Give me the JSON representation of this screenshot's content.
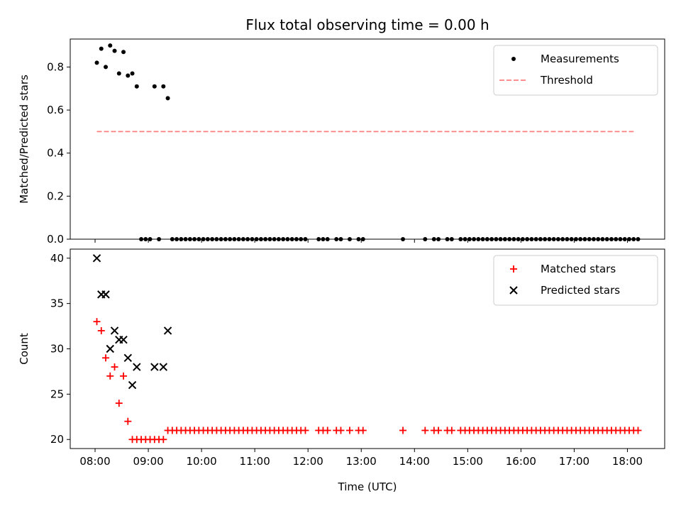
{
  "chart_data": [
    {
      "type": "scatter",
      "title": "Flux total observing time = 0.00 h",
      "ylabel": "Matched/Predicted stars",
      "xlabel": "",
      "ylim": [
        0,
        0.93
      ],
      "yticks": [
        "0.0",
        "0.2",
        "0.4",
        "0.6",
        "0.8"
      ],
      "ytick_values": [
        0,
        0.2,
        0.4,
        0.6,
        0.8
      ],
      "legend_position": "upper-right",
      "series": [
        {
          "name": "Measurements",
          "marker": "dot",
          "color": "#000000",
          "points": [
            [
              "08:02",
              0.82
            ],
            [
              "08:07",
              0.885
            ],
            [
              "08:12",
              0.8
            ],
            [
              "08:17",
              0.9
            ],
            [
              "08:22",
              0.875
            ],
            [
              "08:27",
              0.77
            ],
            [
              "08:32",
              0.87
            ],
            [
              "08:37",
              0.76
            ],
            [
              "08:42",
              0.77
            ],
            [
              "08:47",
              0.71
            ],
            [
              "08:52",
              0.0
            ],
            [
              "08:57",
              0.0
            ],
            [
              "09:02",
              0.0
            ],
            [
              "09:07",
              0.71
            ],
            [
              "09:12",
              0.0
            ],
            [
              "09:17",
              0.71
            ],
            [
              "09:22",
              0.655
            ],
            [
              "09:27",
              0.0
            ],
            [
              "09:32",
              0.0
            ],
            [
              "09:37",
              0.0
            ],
            [
              "09:42",
              0.0
            ],
            [
              "09:47",
              0.0
            ],
            [
              "09:52",
              0.0
            ],
            [
              "09:57",
              0.0
            ],
            [
              "10:02",
              0.0
            ],
            [
              "10:07",
              0.0
            ],
            [
              "10:12",
              0.0
            ],
            [
              "10:17",
              0.0
            ],
            [
              "10:22",
              0.0
            ],
            [
              "10:27",
              0.0
            ],
            [
              "10:32",
              0.0
            ],
            [
              "10:37",
              0.0
            ],
            [
              "10:42",
              0.0
            ],
            [
              "10:47",
              0.0
            ],
            [
              "10:52",
              0.0
            ],
            [
              "10:57",
              0.0
            ],
            [
              "11:02",
              0.0
            ],
            [
              "11:07",
              0.0
            ],
            [
              "11:12",
              0.0
            ],
            [
              "11:17",
              0.0
            ],
            [
              "11:22",
              0.0
            ],
            [
              "11:27",
              0.0
            ],
            [
              "11:32",
              0.0
            ],
            [
              "11:37",
              0.0
            ],
            [
              "11:42",
              0.0
            ],
            [
              "11:47",
              0.0
            ],
            [
              "11:52",
              0.0
            ],
            [
              "11:57",
              0.0
            ],
            [
              "12:12",
              0.0
            ],
            [
              "12:17",
              0.0
            ],
            [
              "12:22",
              0.0
            ],
            [
              "12:32",
              0.0
            ],
            [
              "12:37",
              0.0
            ],
            [
              "12:47",
              0.0
            ],
            [
              "12:57",
              0.0
            ],
            [
              "13:02",
              0.0
            ],
            [
              "13:47",
              0.0
            ],
            [
              "14:12",
              0.0
            ],
            [
              "14:22",
              0.0
            ],
            [
              "14:27",
              0.0
            ],
            [
              "14:37",
              0.0
            ],
            [
              "14:42",
              0.0
            ],
            [
              "14:52",
              0.0
            ],
            [
              "14:57",
              0.0
            ],
            [
              "15:02",
              0.0
            ],
            [
              "15:07",
              0.0
            ],
            [
              "15:12",
              0.0
            ],
            [
              "15:17",
              0.0
            ],
            [
              "15:22",
              0.0
            ],
            [
              "15:27",
              0.0
            ],
            [
              "15:32",
              0.0
            ],
            [
              "15:37",
              0.0
            ],
            [
              "15:42",
              0.0
            ],
            [
              "15:47",
              0.0
            ],
            [
              "15:52",
              0.0
            ],
            [
              "15:57",
              0.0
            ],
            [
              "16:02",
              0.0
            ],
            [
              "16:07",
              0.0
            ],
            [
              "16:12",
              0.0
            ],
            [
              "16:17",
              0.0
            ],
            [
              "16:22",
              0.0
            ],
            [
              "16:27",
              0.0
            ],
            [
              "16:32",
              0.0
            ],
            [
              "16:37",
              0.0
            ],
            [
              "16:42",
              0.0
            ],
            [
              "16:47",
              0.0
            ],
            [
              "16:52",
              0.0
            ],
            [
              "16:57",
              0.0
            ],
            [
              "17:02",
              0.0
            ],
            [
              "17:07",
              0.0
            ],
            [
              "17:12",
              0.0
            ],
            [
              "17:17",
              0.0
            ],
            [
              "17:22",
              0.0
            ],
            [
              "17:27",
              0.0
            ],
            [
              "17:32",
              0.0
            ],
            [
              "17:37",
              0.0
            ],
            [
              "17:42",
              0.0
            ],
            [
              "17:47",
              0.0
            ],
            [
              "17:52",
              0.0
            ],
            [
              "17:57",
              0.0
            ],
            [
              "18:02",
              0.0
            ],
            [
              "18:07",
              0.0
            ],
            [
              "18:12",
              0.0
            ]
          ]
        },
        {
          "name": "Threshold",
          "marker": "dashed-line",
          "color": "#ff7f7f",
          "points": [
            [
              "08:02",
              0.5
            ],
            [
              "18:07",
              0.5
            ]
          ]
        }
      ]
    },
    {
      "type": "scatter",
      "title": "",
      "ylabel": "Count",
      "xlabel": "Time (UTC)",
      "ylim": [
        19,
        41
      ],
      "yticks": [
        "20",
        "25",
        "30",
        "35",
        "40"
      ],
      "ytick_values": [
        20,
        25,
        30,
        35,
        40
      ],
      "xlim": [
        "07:32",
        "18:42"
      ],
      "xticks": [
        "08:00",
        "09:00",
        "10:00",
        "11:00",
        "12:00",
        "13:00",
        "14:00",
        "15:00",
        "16:00",
        "17:00",
        "18:00"
      ],
      "legend_position": "upper-right",
      "series": [
        {
          "name": "Matched stars",
          "marker": "plus",
          "color": "#ff0000",
          "points": [
            [
              "08:02",
              33
            ],
            [
              "08:07",
              32
            ],
            [
              "08:12",
              29
            ],
            [
              "08:17",
              27
            ],
            [
              "08:22",
              28
            ],
            [
              "08:27",
              24
            ],
            [
              "08:32",
              27
            ],
            [
              "08:37",
              22
            ],
            [
              "08:42",
              20
            ],
            [
              "08:47",
              20
            ],
            [
              "08:52",
              20
            ],
            [
              "08:57",
              20
            ],
            [
              "09:02",
              20
            ],
            [
              "09:07",
              20
            ],
            [
              "09:12",
              20
            ],
            [
              "09:17",
              20
            ],
            [
              "09:22",
              21
            ],
            [
              "09:27",
              21
            ],
            [
              "09:32",
              21
            ],
            [
              "09:37",
              21
            ],
            [
              "09:42",
              21
            ],
            [
              "09:47",
              21
            ],
            [
              "09:52",
              21
            ],
            [
              "09:57",
              21
            ],
            [
              "10:02",
              21
            ],
            [
              "10:07",
              21
            ],
            [
              "10:12",
              21
            ],
            [
              "10:17",
              21
            ],
            [
              "10:22",
              21
            ],
            [
              "10:27",
              21
            ],
            [
              "10:32",
              21
            ],
            [
              "10:37",
              21
            ],
            [
              "10:42",
              21
            ],
            [
              "10:47",
              21
            ],
            [
              "10:52",
              21
            ],
            [
              "10:57",
              21
            ],
            [
              "11:02",
              21
            ],
            [
              "11:07",
              21
            ],
            [
              "11:12",
              21
            ],
            [
              "11:17",
              21
            ],
            [
              "11:22",
              21
            ],
            [
              "11:27",
              21
            ],
            [
              "11:32",
              21
            ],
            [
              "11:37",
              21
            ],
            [
              "11:42",
              21
            ],
            [
              "11:47",
              21
            ],
            [
              "11:52",
              21
            ],
            [
              "11:57",
              21
            ],
            [
              "12:12",
              21
            ],
            [
              "12:17",
              21
            ],
            [
              "12:22",
              21
            ],
            [
              "12:32",
              21
            ],
            [
              "12:37",
              21
            ],
            [
              "12:47",
              21
            ],
            [
              "12:57",
              21
            ],
            [
              "13:02",
              21
            ],
            [
              "13:47",
              21
            ],
            [
              "14:12",
              21
            ],
            [
              "14:22",
              21
            ],
            [
              "14:27",
              21
            ],
            [
              "14:37",
              21
            ],
            [
              "14:42",
              21
            ],
            [
              "14:52",
              21
            ],
            [
              "14:57",
              21
            ],
            [
              "15:02",
              21
            ],
            [
              "15:07",
              21
            ],
            [
              "15:12",
              21
            ],
            [
              "15:17",
              21
            ],
            [
              "15:22",
              21
            ],
            [
              "15:27",
              21
            ],
            [
              "15:32",
              21
            ],
            [
              "15:37",
              21
            ],
            [
              "15:42",
              21
            ],
            [
              "15:47",
              21
            ],
            [
              "15:52",
              21
            ],
            [
              "15:57",
              21
            ],
            [
              "16:02",
              21
            ],
            [
              "16:07",
              21
            ],
            [
              "16:12",
              21
            ],
            [
              "16:17",
              21
            ],
            [
              "16:22",
              21
            ],
            [
              "16:27",
              21
            ],
            [
              "16:32",
              21
            ],
            [
              "16:37",
              21
            ],
            [
              "16:42",
              21
            ],
            [
              "16:47",
              21
            ],
            [
              "16:52",
              21
            ],
            [
              "16:57",
              21
            ],
            [
              "17:02",
              21
            ],
            [
              "17:07",
              21
            ],
            [
              "17:12",
              21
            ],
            [
              "17:17",
              21
            ],
            [
              "17:22",
              21
            ],
            [
              "17:27",
              21
            ],
            [
              "17:32",
              21
            ],
            [
              "17:37",
              21
            ],
            [
              "17:42",
              21
            ],
            [
              "17:47",
              21
            ],
            [
              "17:52",
              21
            ],
            [
              "17:57",
              21
            ],
            [
              "18:02",
              21
            ],
            [
              "18:07",
              21
            ],
            [
              "18:12",
              21
            ]
          ]
        },
        {
          "name": "Predicted stars",
          "marker": "x",
          "color": "#000000",
          "points": [
            [
              "08:02",
              40
            ],
            [
              "08:07",
              36
            ],
            [
              "08:12",
              36
            ],
            [
              "08:17",
              30
            ],
            [
              "08:22",
              32
            ],
            [
              "08:27",
              31
            ],
            [
              "08:32",
              31
            ],
            [
              "08:37",
              29
            ],
            [
              "08:42",
              26
            ],
            [
              "08:47",
              28
            ],
            [
              "09:07",
              28
            ],
            [
              "09:17",
              28
            ],
            [
              "09:22",
              32
            ]
          ]
        }
      ]
    }
  ]
}
